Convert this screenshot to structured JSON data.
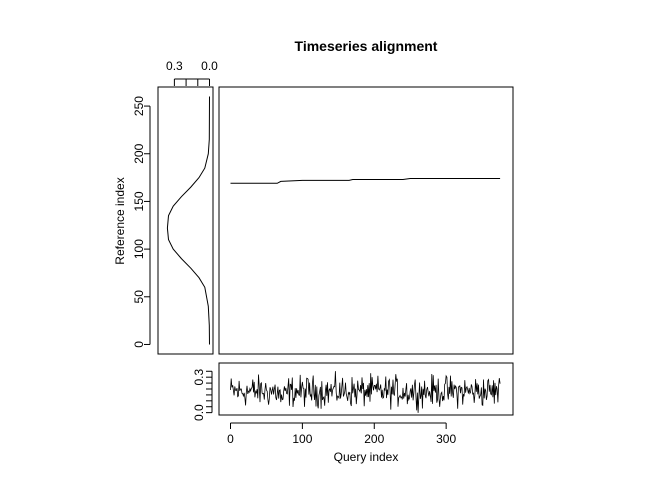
{
  "chart_data": [
    {
      "panel": "main",
      "type": "line",
      "title": "Timeseries alignment",
      "xlabel": "",
      "ylabel": "Reference index",
      "xlim": [
        -16,
        393
      ],
      "ylim": [
        -10,
        270
      ],
      "xticks": [],
      "yticks": [
        "0",
        "50",
        "100",
        "150",
        "200",
        "250"
      ],
      "series": [
        {
          "values_description": "warping path (query index vs reference index)",
          "x": [
            0,
            65,
            70,
            100,
            165,
            170,
            240,
            250,
            375
          ],
          "y": [
            169,
            169,
            171,
            172,
            172,
            173,
            173,
            174,
            174
          ]
        }
      ]
    },
    {
      "panel": "left-density",
      "type": "line",
      "xlim": [
        0.44,
        -0.03
      ],
      "ylim": [
        -10,
        270
      ],
      "xticks": [
        "0.3",
        "0.0"
      ],
      "series": [
        {
          "x": [
            0.0,
            0.002,
            0.01,
            0.04,
            0.09,
            0.16,
            0.24,
            0.31,
            0.35,
            0.36,
            0.35,
            0.31,
            0.24,
            0.16,
            0.09,
            0.04,
            0.01,
            0.002,
            0.0
          ],
          "y": [
            0,
            20,
            40,
            60,
            70,
            80,
            90,
            100,
            110,
            122,
            135,
            145,
            155,
            165,
            175,
            185,
            200,
            215,
            260
          ]
        }
      ]
    },
    {
      "panel": "bottom-query",
      "type": "line",
      "xlabel": "Query index",
      "xlim": [
        -16,
        393
      ],
      "ylim": [
        -0.02,
        0.42
      ],
      "xticks": [
        "0",
        "100",
        "200",
        "300"
      ],
      "yticks": [
        "0.0",
        "0.3"
      ],
      "n_points": 376,
      "mean": 0.18,
      "amplitude": 0.08
    }
  ]
}
